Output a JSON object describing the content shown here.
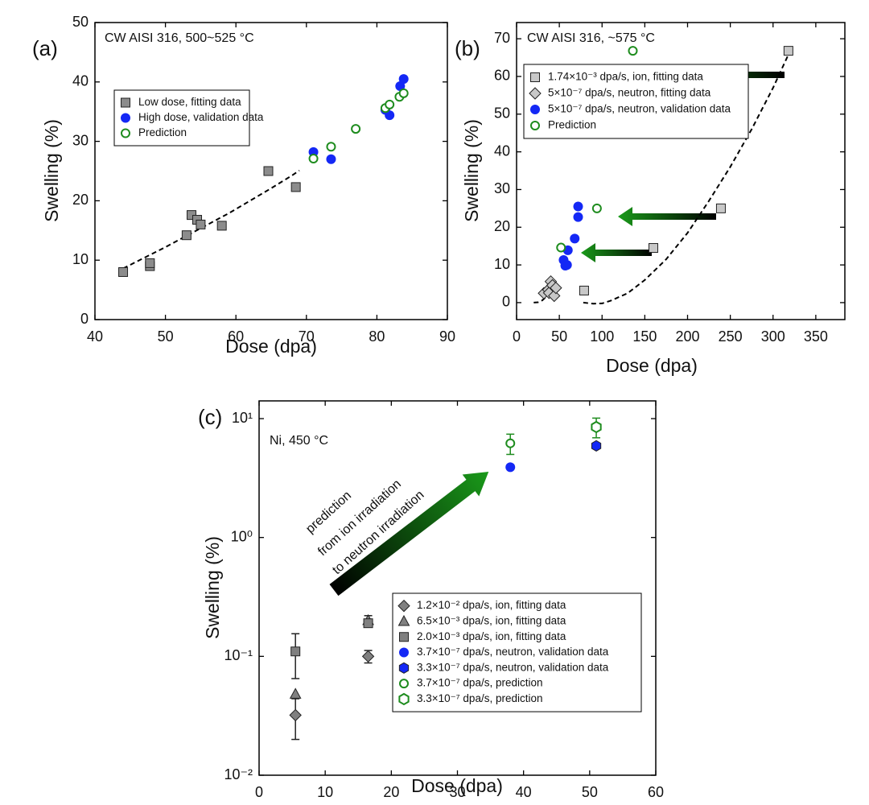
{
  "chart_data": [
    {
      "type": "scatter",
      "panel_label": "(a)",
      "annotation": "CW AISI 316, 500~525 °C",
      "xlabel": "Dose (dpa)",
      "ylabel": "Swelling (%)",
      "xlim": [
        40,
        90
      ],
      "ylim": [
        0,
        50
      ],
      "xticks": [
        40,
        50,
        60,
        70,
        80,
        90
      ],
      "yticks": [
        0,
        10,
        20,
        30,
        40,
        50
      ],
      "series": [
        {
          "name": "Low dose, fitting data",
          "marker": "square",
          "filled": true,
          "color": "#8c8c8c",
          "x": [
            44,
            47.8,
            47.8,
            53,
            53.7,
            54.5,
            55,
            58,
            64.6,
            68.5
          ],
          "values": [
            8,
            9,
            9.5,
            14.2,
            17.6,
            16.8,
            16,
            15.8,
            25,
            22.3
          ]
        },
        {
          "name": "High dose, validation data",
          "marker": "circle",
          "filled": true,
          "color": "#1428f5",
          "x": [
            71,
            73.5,
            81.2,
            81.8,
            83.3,
            83.8
          ],
          "values": [
            28.2,
            27,
            35.3,
            34.4,
            39.3,
            40.5
          ]
        },
        {
          "name": "Prediction",
          "marker": "circle",
          "filled": false,
          "color": "#1e8c1e",
          "x": [
            71,
            73.5,
            77,
            81.2,
            81.8,
            83.2,
            83.8
          ],
          "values": [
            27.1,
            29.1,
            32.1,
            35.6,
            36.2,
            37.5,
            38.1
          ]
        }
      ],
      "fits": [
        {
          "x": [
            44,
            47,
            50,
            53,
            56,
            59,
            62,
            65,
            68,
            69
          ],
          "values": [
            8.6,
            10.4,
            12.2,
            14.1,
            16,
            17.9,
            20,
            22.1,
            24.3,
            25.1
          ]
        }
      ]
    },
    {
      "type": "scatter",
      "panel_label": "(b)",
      "annotation": "CW AISI 316, ~575 °C",
      "xlabel": "Dose (dpa)",
      "ylabel": "Swelling (%)",
      "xlim": [
        0,
        384
      ],
      "ylim": [
        -4.5,
        74.3
      ],
      "xticks": [
        0,
        50,
        100,
        150,
        200,
        250,
        300,
        350
      ],
      "yticks": [
        0,
        10,
        20,
        30,
        40,
        50,
        60,
        70
      ],
      "series": [
        {
          "name": "1.74×10⁻³ dpa/s, ion, fitting data",
          "marker": "square",
          "filled": true,
          "color": "#c8c8c8",
          "x": [
            79,
            160,
            239,
            318
          ],
          "values": [
            3.2,
            14.5,
            25,
            66.8
          ]
        },
        {
          "name": "5×10⁻⁷ dpa/s, neutron, fitting data",
          "marker": "diamond",
          "filled": true,
          "color": "#c8c8c8",
          "x": [
            32,
            37,
            38,
            40,
            42,
            44,
            46
          ],
          "values": [
            2.5,
            3.4,
            2.6,
            5.6,
            4.6,
            1.8,
            3.9
          ]
        },
        {
          "name": "5×10⁻⁷ dpa/s, neutron, validation data",
          "marker": "circle",
          "filled": true,
          "color": "#1428f5",
          "x": [
            55,
            57,
            59,
            60,
            68,
            72,
            72
          ],
          "values": [
            11.3,
            9.8,
            10,
            13.9,
            17,
            25.5,
            22.7
          ]
        },
        {
          "name": "Prediction",
          "marker": "circle",
          "filled": false,
          "color": "#1e8c1e",
          "x": [
            52,
            94,
            136
          ],
          "values": [
            14.6,
            25,
            66.8
          ]
        }
      ],
      "fits": [
        {
          "x": [
            20,
            25,
            30,
            35
          ],
          "values": [
            0,
            0.1,
            0.6,
            1.6
          ]
        },
        {
          "x": [
            78,
            90,
            100,
            110,
            130,
            150,
            175,
            200,
            225,
            250,
            275,
            300,
            320
          ],
          "values": [
            0,
            -0.3,
            -0.2,
            0.5,
            2.5,
            6,
            11.5,
            18.5,
            27,
            36,
            46,
            57,
            66.8
          ]
        }
      ]
    },
    {
      "type": "scatter",
      "panel_label": "(c)",
      "annotation": "Ni, 450 °C",
      "xlabel": "Dose (dpa)",
      "ylabel": "Swelling (%)",
      "log_y": true,
      "xlim": [
        0,
        60
      ],
      "ylim": [
        0.01,
        14.1
      ],
      "xticks": [
        0,
        10,
        20,
        30,
        40,
        50,
        60
      ],
      "yticks": [
        {
          "value": 0.01,
          "label": "10⁻²"
        },
        {
          "value": 0.1,
          "label": "10⁻¹"
        },
        {
          "value": 1,
          "label": "10⁰"
        },
        {
          "value": 10,
          "label": "10¹"
        }
      ],
      "annotation_lines": [
        "prediction",
        "from ion irradiation",
        "to neutron irradiation"
      ],
      "series": [
        {
          "name": "1.2×10⁻² dpa/s, ion, fitting data",
          "marker": "diamond",
          "filled": true,
          "color": "#808080",
          "x": [
            5.5,
            16.5
          ],
          "values": [
            0.032,
            0.1
          ],
          "errors": [
            0.012,
            0.012
          ]
        },
        {
          "name": "6.5×10⁻³ dpa/s, ion, fitting data",
          "marker": "triangle",
          "filled": true,
          "color": "#808080",
          "x": [
            5.5,
            16.5
          ],
          "values": [
            0.048,
            0.2
          ],
          "errors": [
            null,
            0.02
          ]
        },
        {
          "name": "2.0×10⁻³ dpa/s, ion, fitting data",
          "marker": "square",
          "filled": true,
          "color": "#808080",
          "x": [
            5.5,
            16.5
          ],
          "values": [
            0.11,
            0.19
          ],
          "errors": [
            0.045,
            null
          ]
        },
        {
          "name": "3.7×10⁻⁷ dpa/s, neutron, validation data",
          "marker": "circle",
          "filled": true,
          "color": "#1428f5",
          "x": [
            38
          ],
          "values": [
            3.9
          ]
        },
        {
          "name": "3.3×10⁻⁷ dpa/s, neutron, validation data",
          "marker": "hexagon",
          "filled": true,
          "color": "#1428f5",
          "x": [
            51
          ],
          "values": [
            5.9
          ]
        },
        {
          "name": "3.7×10⁻⁷ dpa/s, prediction",
          "marker": "circle",
          "filled": false,
          "color": "#1e8c1e",
          "x": [
            38
          ],
          "values": [
            6.2
          ],
          "errors": [
            1.2
          ]
        },
        {
          "name": "3.3×10⁻⁷ dpa/s, prediction",
          "marker": "hexagon",
          "filled": false,
          "color": "#1e8c1e",
          "x": [
            51
          ],
          "values": [
            8.5
          ],
          "errors": [
            1.6
          ]
        }
      ]
    }
  ]
}
